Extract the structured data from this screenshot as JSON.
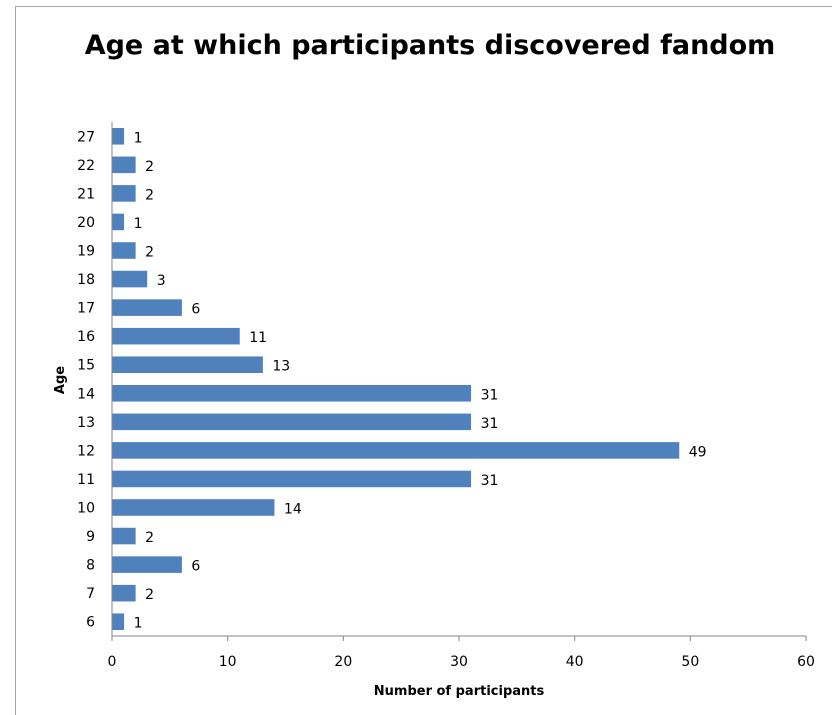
{
  "chart_data": {
    "type": "bar",
    "orientation": "horizontal",
    "title": "Age at which participants discovered fandom",
    "xlabel": "Number of participants",
    "ylabel": "Age",
    "categories": [
      "6",
      "7",
      "8",
      "9",
      "10",
      "11",
      "12",
      "13",
      "14",
      "15",
      "16",
      "17",
      "18",
      "19",
      "20",
      "21",
      "22",
      "27"
    ],
    "values": [
      1,
      2,
      6,
      2,
      14,
      31,
      49,
      31,
      31,
      13,
      11,
      6,
      3,
      2,
      1,
      2,
      2,
      1
    ],
    "xlim": [
      0,
      60
    ],
    "xticks": [
      0,
      10,
      20,
      30,
      40,
      50,
      60
    ],
    "grid": false,
    "legend": false,
    "data_labels": true,
    "bar_color": "#4f81bd"
  }
}
